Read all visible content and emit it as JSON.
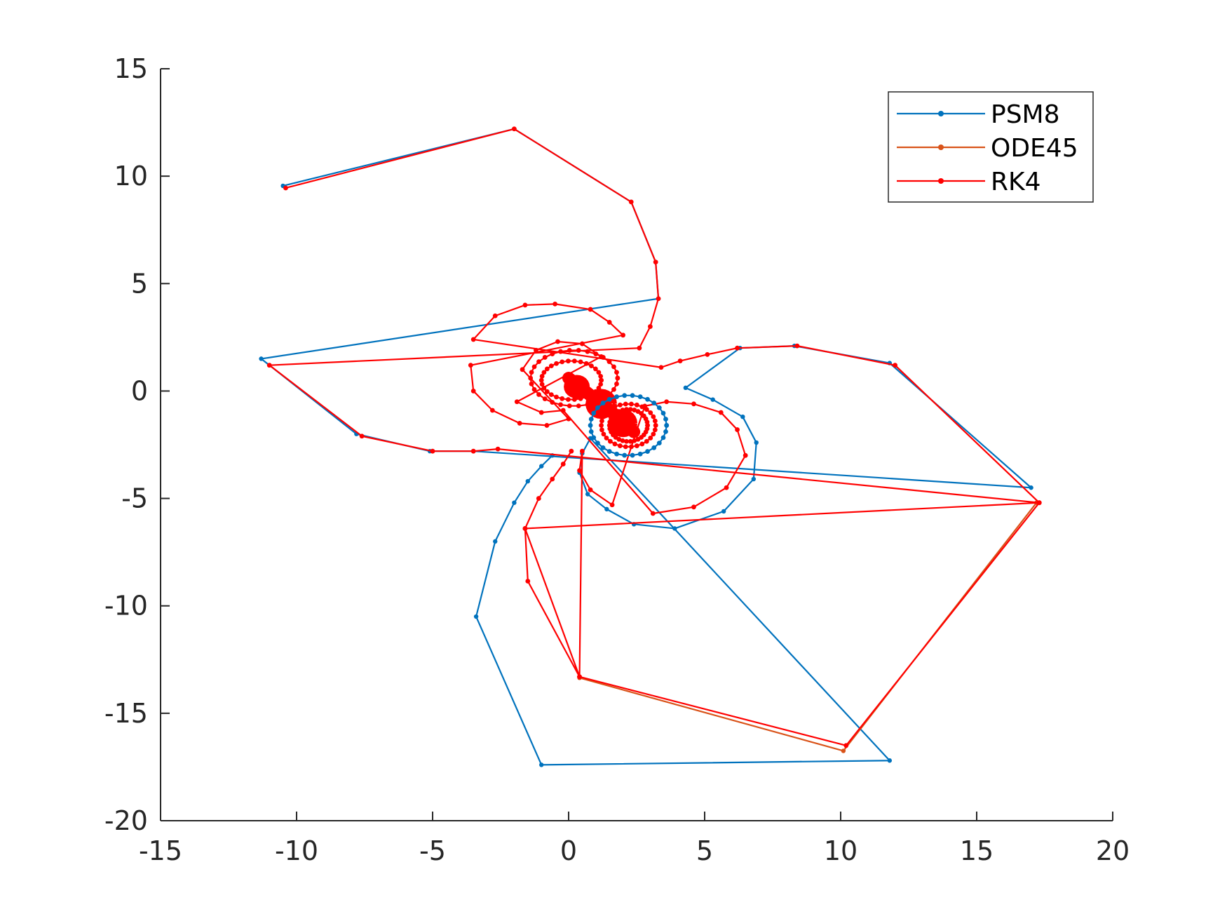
{
  "chart_data": {
    "type": "line",
    "title": "",
    "xlabel": "",
    "ylabel": "",
    "xlim": [
      -15,
      20
    ],
    "ylim": [
      -20,
      15
    ],
    "xticks": [
      -15,
      -10,
      -5,
      0,
      5,
      10,
      15,
      20
    ],
    "yticks": [
      -20,
      -15,
      -10,
      -5,
      0,
      5,
      10,
      15
    ],
    "xtick_labels": [
      "-15",
      "-10",
      "-5",
      "0",
      "5",
      "10",
      "15",
      "20"
    ],
    "ytick_labels": [
      "-20",
      "-15",
      "-10",
      "-5",
      "0",
      "5",
      "10",
      "15"
    ],
    "grid": false,
    "legend_position": "top-right",
    "series": [
      {
        "name": "PSM8",
        "color": "#0072BD",
        "marker": "dot",
        "points": [
          [
            -10.5,
            9.55
          ],
          [
            -2.0,
            12.2
          ],
          [
            2.3,
            8.8
          ],
          [
            3.2,
            6.0
          ],
          [
            3.3,
            4.3
          ],
          [
            -11.3,
            1.5
          ],
          [
            -7.8,
            -2.0
          ],
          [
            -5.1,
            -2.8
          ],
          [
            -3.5,
            -2.8
          ],
          [
            17.0,
            -4.5
          ],
          [
            11.8,
            1.3
          ],
          [
            8.3,
            2.1
          ],
          [
            6.3,
            2.0
          ],
          [
            4.3,
            0.15
          ],
          [
            5.3,
            -0.4
          ],
          [
            6.4,
            -1.2
          ],
          [
            6.9,
            -2.4
          ],
          [
            6.8,
            -4.1
          ],
          [
            5.7,
            -5.6
          ],
          [
            3.9,
            -6.4
          ],
          [
            2.4,
            -6.2
          ],
          [
            1.4,
            -5.5
          ],
          [
            0.7,
            -4.8
          ],
          [
            0.4,
            -3.8
          ],
          [
            0.5,
            -2.9
          ],
          [
            0.8,
            -2.2
          ],
          [
            11.8,
            -17.2
          ],
          [
            -1.0,
            -17.4
          ],
          [
            -3.4,
            -10.5
          ],
          [
            -2.7,
            -7.0
          ],
          [
            -2.0,
            -5.2
          ],
          [
            -1.5,
            -4.2
          ],
          [
            -1.0,
            -3.5
          ],
          [
            -0.6,
            -3.0
          ]
        ]
      },
      {
        "name": "ODE45",
        "color": "#D95319",
        "marker": "dot",
        "points": [
          [
            0.4,
            -13.35
          ],
          [
            10.1,
            -16.75
          ],
          [
            17.2,
            -5.2
          ]
        ]
      },
      {
        "name": "RK4",
        "color": "#FF0000",
        "marker": "dot",
        "points": [
          [
            -10.4,
            9.45
          ],
          [
            -2.0,
            12.2
          ],
          [
            2.3,
            8.8
          ],
          [
            3.2,
            6.0
          ],
          [
            3.3,
            4.3
          ],
          [
            3.0,
            3.0
          ],
          [
            2.6,
            2.0
          ],
          [
            -11.0,
            1.2
          ],
          [
            -7.6,
            -2.1
          ],
          [
            -5.0,
            -2.8
          ],
          [
            -3.5,
            -2.8
          ],
          [
            -2.6,
            -2.7
          ],
          [
            17.3,
            -5.2
          ],
          [
            12.0,
            1.2
          ],
          [
            8.4,
            2.1
          ],
          [
            6.2,
            2.0
          ],
          [
            5.1,
            1.7
          ],
          [
            4.1,
            1.4
          ],
          [
            3.4,
            1.1
          ],
          [
            -3.5,
            2.4
          ],
          [
            -2.7,
            3.5
          ],
          [
            -1.6,
            4.0
          ],
          [
            -0.5,
            4.05
          ],
          [
            0.8,
            3.8
          ],
          [
            1.5,
            3.2
          ],
          [
            2.0,
            2.6
          ],
          [
            -3.6,
            1.2
          ],
          [
            -3.5,
            0.0
          ],
          [
            -2.8,
            -0.9
          ],
          [
            -1.8,
            -1.5
          ],
          [
            -0.8,
            -1.6
          ],
          [
            0.0,
            -1.3
          ],
          [
            -1.7,
            1.0
          ],
          [
            -1.2,
            1.9
          ],
          [
            -0.4,
            2.3
          ],
          [
            0.5,
            2.2
          ],
          [
            1.2,
            1.6
          ],
          [
            -1.9,
            -0.5
          ],
          [
            -1.0,
            -1.0
          ],
          [
            -0.2,
            -0.9
          ],
          [
            3.1,
            -5.7
          ],
          [
            4.6,
            -5.4
          ],
          [
            5.8,
            -4.5
          ],
          [
            6.5,
            -3.0
          ],
          [
            6.2,
            -1.8
          ],
          [
            5.6,
            -1.0
          ],
          [
            4.6,
            -0.6
          ],
          [
            3.6,
            -0.5
          ],
          [
            2.8,
            -0.7
          ],
          [
            1.6,
            -5.3
          ],
          [
            0.8,
            -4.6
          ],
          [
            0.4,
            -3.7
          ],
          [
            0.5,
            -2.8
          ],
          [
            0.4,
            -13.3
          ],
          [
            10.2,
            -16.5
          ],
          [
            17.3,
            -5.2
          ],
          [
            -1.6,
            -6.4
          ],
          [
            -1.5,
            -8.85
          ],
          [
            0.4,
            -13.3
          ],
          [
            -1.6,
            -6.4
          ],
          [
            -1.1,
            -5.0
          ],
          [
            -0.6,
            -4.1
          ],
          [
            -0.2,
            -3.4
          ],
          [
            0.1,
            -2.8
          ]
        ]
      }
    ]
  }
}
